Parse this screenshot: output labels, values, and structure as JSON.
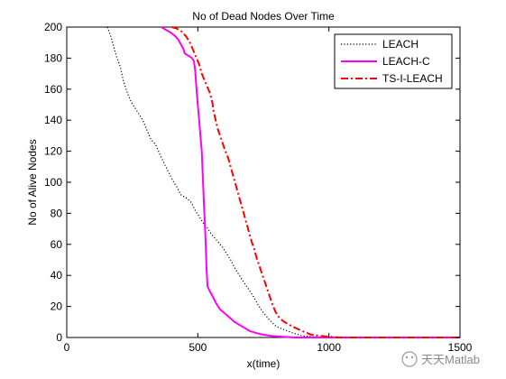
{
  "chart_data": {
    "type": "line",
    "title": "No of Dead Nodes Over Time",
    "xlabel": "x(time)",
    "ylabel": "No of Alive Nodes",
    "xlim": [
      0,
      1500
    ],
    "ylim": [
      0,
      200
    ],
    "xticks": [
      0,
      500,
      1000,
      1500
    ],
    "yticks": [
      0,
      20,
      40,
      60,
      80,
      100,
      120,
      140,
      160,
      180,
      200
    ],
    "grid": false,
    "legend_position": "top-right",
    "series": [
      {
        "name": "LEACH",
        "color": "#000000",
        "style": "dotted",
        "points": [
          [
            155,
            200
          ],
          [
            170,
            193
          ],
          [
            180,
            187
          ],
          [
            190,
            181
          ],
          [
            205,
            174
          ],
          [
            215,
            166
          ],
          [
            230,
            158
          ],
          [
            245,
            152
          ],
          [
            260,
            148
          ],
          [
            275,
            144
          ],
          [
            290,
            140
          ],
          [
            305,
            134
          ],
          [
            320,
            128
          ],
          [
            340,
            124
          ],
          [
            355,
            118
          ],
          [
            375,
            111
          ],
          [
            390,
            106
          ],
          [
            405,
            101
          ],
          [
            420,
            97
          ],
          [
            435,
            92
          ],
          [
            455,
            90
          ],
          [
            475,
            87
          ],
          [
            490,
            82
          ],
          [
            505,
            78
          ],
          [
            520,
            74
          ],
          [
            535,
            71
          ],
          [
            550,
            67
          ],
          [
            565,
            64
          ],
          [
            580,
            61
          ],
          [
            595,
            58
          ],
          [
            610,
            54
          ],
          [
            625,
            50
          ],
          [
            640,
            45
          ],
          [
            655,
            41
          ],
          [
            670,
            37
          ],
          [
            690,
            32
          ],
          [
            710,
            27
          ],
          [
            730,
            21
          ],
          [
            750,
            16
          ],
          [
            775,
            11
          ],
          [
            800,
            7
          ],
          [
            830,
            5
          ],
          [
            860,
            3
          ],
          [
            900,
            1
          ],
          [
            950,
            0.5
          ],
          [
            1000,
            0
          ],
          [
            1500,
            0
          ]
        ]
      },
      {
        "name": "LEACH-C",
        "color": "#ff00ff",
        "style": "solid",
        "points": [
          [
            360,
            200
          ],
          [
            380,
            198
          ],
          [
            400,
            196
          ],
          [
            415,
            194
          ],
          [
            425,
            192
          ],
          [
            435,
            189
          ],
          [
            445,
            186
          ],
          [
            450,
            183
          ],
          [
            460,
            182
          ],
          [
            470,
            181
          ],
          [
            478,
            180
          ],
          [
            485,
            178
          ],
          [
            490,
            172
          ],
          [
            495,
            160
          ],
          [
            500,
            150
          ],
          [
            505,
            140
          ],
          [
            510,
            130
          ],
          [
            515,
            120
          ],
          [
            520,
            100
          ],
          [
            525,
            80
          ],
          [
            530,
            60
          ],
          [
            533,
            45
          ],
          [
            537,
            33
          ],
          [
            545,
            30
          ],
          [
            555,
            27
          ],
          [
            570,
            22
          ],
          [
            585,
            18
          ],
          [
            600,
            16
          ],
          [
            620,
            13
          ],
          [
            640,
            10
          ],
          [
            660,
            8
          ],
          [
            680,
            6
          ],
          [
            700,
            4
          ],
          [
            720,
            3
          ],
          [
            745,
            2
          ],
          [
            780,
            1
          ],
          [
            820,
            0.5
          ],
          [
            870,
            0
          ],
          [
            1500,
            0
          ]
        ]
      },
      {
        "name": "TS-I-LEACH",
        "color": "#ff0000",
        "style": "dashdot",
        "points": [
          [
            400,
            200
          ],
          [
            420,
            199
          ],
          [
            440,
            197
          ],
          [
            455,
            194
          ],
          [
            470,
            190
          ],
          [
            485,
            184
          ],
          [
            495,
            180
          ],
          [
            505,
            176
          ],
          [
            515,
            170
          ],
          [
            525,
            166
          ],
          [
            535,
            162
          ],
          [
            545,
            158
          ],
          [
            555,
            152
          ],
          [
            560,
            146
          ],
          [
            568,
            140
          ],
          [
            575,
            135
          ],
          [
            585,
            130
          ],
          [
            595,
            125
          ],
          [
            605,
            120
          ],
          [
            615,
            116
          ],
          [
            625,
            110
          ],
          [
            635,
            104
          ],
          [
            645,
            98
          ],
          [
            655,
            92
          ],
          [
            665,
            86
          ],
          [
            675,
            80
          ],
          [
            685,
            74
          ],
          [
            695,
            68
          ],
          [
            705,
            62
          ],
          [
            715,
            57
          ],
          [
            725,
            51
          ],
          [
            735,
            46
          ],
          [
            745,
            41
          ],
          [
            755,
            36
          ],
          [
            765,
            31
          ],
          [
            775,
            26
          ],
          [
            785,
            21
          ],
          [
            795,
            17
          ],
          [
            805,
            14
          ],
          [
            815,
            12
          ],
          [
            830,
            10
          ],
          [
            850,
            8
          ],
          [
            875,
            6
          ],
          [
            900,
            4
          ],
          [
            930,
            2
          ],
          [
            970,
            1
          ],
          [
            1000,
            0.5
          ],
          [
            1040,
            0
          ],
          [
            1500,
            0
          ]
        ]
      }
    ]
  },
  "watermark": {
    "text": "天天Matlab"
  }
}
